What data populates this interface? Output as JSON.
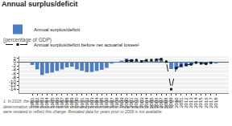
{
  "chart_data": {
    "type": "bar",
    "title": "Annual surplus/deficit",
    "subtitle": "(percentage of GDP)",
    "footnote": "1  In 2018, the government implemented, on a retroactive basis, a change in its methodology for the determination of the discount rate for unfunded pension benefits. Fiscal results for 2009 to 2017 were restated to reflect this change. Restated data for years prior to 2009 is not available.",
    "categories": [
      1981,
      1982,
      1983,
      1984,
      1985,
      1986,
      1987,
      1988,
      1989,
      1990,
      1991,
      1992,
      1993,
      1994,
      1995,
      1996,
      1997,
      1998,
      1999,
      2000,
      2001,
      2002,
      2003,
      2004,
      2005,
      2006,
      2007,
      2008,
      2009,
      2010,
      2011,
      2012,
      2013,
      2014,
      2015,
      2016,
      2017,
      2018
    ],
    "series": [
      {
        "name": "Annual surplus/deficit",
        "type": "bar",
        "color": "#4d7ebf",
        "values": [
          -1.5,
          -3.8,
          -6.7,
          -5.8,
          -5.4,
          -4.6,
          -3.8,
          -2.8,
          -2.4,
          -3.8,
          -4.5,
          -5.2,
          -5.1,
          -4.6,
          -4.0,
          -3.0,
          -0.8,
          0.1,
          0.7,
          1.8,
          1.5,
          0.7,
          0.0,
          0.6,
          0.7,
          1.0,
          1.3,
          0.0,
          -3.6,
          -3.7,
          -2.8,
          -2.2,
          -1.6,
          -0.5,
          -0.9,
          -1.1,
          -0.6,
          -0.6
        ]
      },
      {
        "name": "Annual surplus/deficit before net actuarial losses¹",
        "type": "line",
        "color": "#1a1a1a",
        "line_style": "dashed",
        "marker": "square",
        "values": [
          null,
          null,
          null,
          null,
          null,
          null,
          null,
          null,
          null,
          null,
          null,
          null,
          null,
          null,
          null,
          null,
          null,
          null,
          null,
          0.6,
          0.7,
          1.0,
          0.3,
          0.9,
          1.0,
          1.2,
          1.5,
          0.2,
          -14.0,
          -3.1,
          -1.8,
          -1.5,
          -1.2,
          -0.3,
          -0.7,
          -0.9,
          -0.4,
          null
        ]
      }
    ],
    "ylim": [
      -16,
      3
    ],
    "yticks": [
      2,
      0,
      -2,
      -4,
      -6,
      -8,
      -10,
      -12,
      -14
    ],
    "grid": true,
    "legend": "top left"
  }
}
